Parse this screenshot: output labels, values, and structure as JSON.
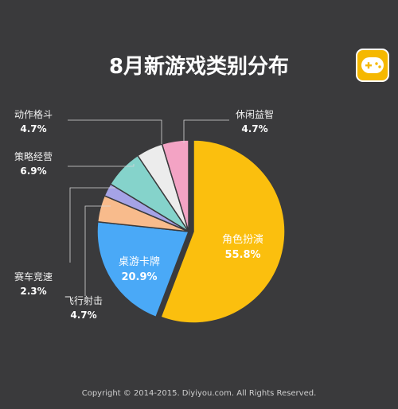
{
  "chart_data": {
    "type": "pie",
    "title": "8月新游戏类别分布",
    "start_angle_deg": 0,
    "direction": "clockwise",
    "slices": [
      {
        "label": "角色扮演",
        "value": 55.8,
        "display": "55.8%",
        "color": "#fbbf0e"
      },
      {
        "label": "桌游卡牌",
        "value": 20.9,
        "display": "20.9%",
        "color": "#4aa9f7"
      },
      {
        "label": "飞行射击",
        "value": 4.7,
        "display": "4.7%",
        "color": "#f8bb8c"
      },
      {
        "label": "赛车竞速",
        "value": 2.3,
        "display": "2.3%",
        "color": "#a5a3e6"
      },
      {
        "label": "策略经营",
        "value": 6.9,
        "display": "6.9%",
        "color": "#85d3cb"
      },
      {
        "label": "动作格斗",
        "value": 4.7,
        "display": "4.7%",
        "color": "#ececec"
      },
      {
        "label": "休闲益智",
        "value": 4.7,
        "display": "4.7%",
        "color": "#f3a3c4"
      }
    ]
  },
  "logo": {
    "icon": "gamepad-icon",
    "bg_color": "#f5b800"
  },
  "footer": "Copyright © 2014-2015. Diyiyou.com. All Rights Reserved."
}
